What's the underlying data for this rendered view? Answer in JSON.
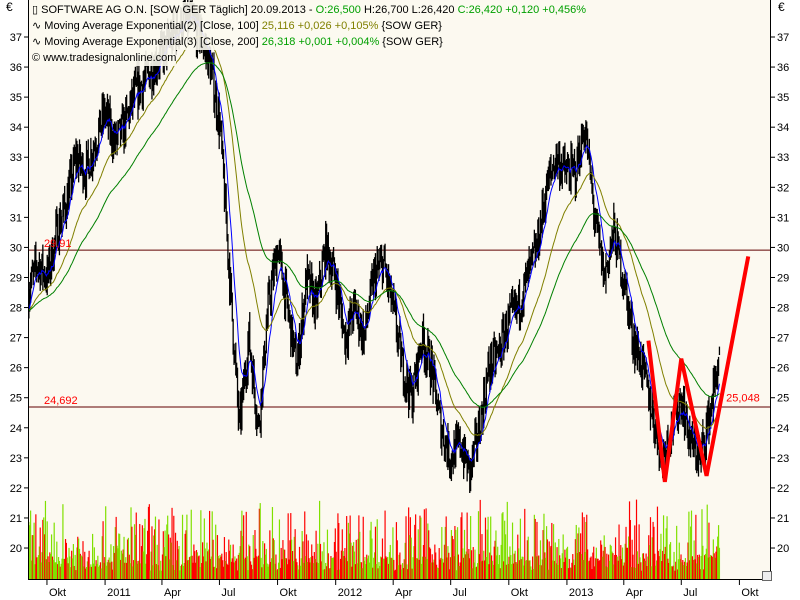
{
  "currency_symbol": "€",
  "legend": {
    "instrument": {
      "icon": "candle-icon",
      "name": "SOFTWARE AG O.N. [SOW GER  Täglich]",
      "date": "20.09.2013 -",
      "open": "O:26,500",
      "high": "H:26,700",
      "low": "L:26,420",
      "close": "C:26,420 +0,120 +0,456%"
    },
    "ma1": {
      "icon": "wave-icon",
      "label": "Moving Average Exponential(2) [Close, 100]",
      "value": "25,116 +0,026 +0,105%",
      "symbol": "{SOW GER}"
    },
    "ma2": {
      "icon": "wave-icon",
      "label": "Moving Average Exponential(3) [Close, 200]",
      "value": "26,318 +0,001 +0,004%",
      "symbol": "{SOW GER}"
    },
    "copyright": "© www.tradesignalonline.com"
  },
  "chart_data": {
    "type": "line",
    "title": "SOFTWARE AG O.N. [SOW GER  Täglich]",
    "yticks": [
      20,
      21,
      22,
      23,
      24,
      25,
      26,
      27,
      28,
      29,
      30,
      31,
      32,
      33,
      34,
      35,
      36,
      37
    ],
    "ylim": [
      19.3,
      37.6
    ],
    "xticks": [
      "Okt",
      "2011",
      "Apr",
      "Jul",
      "Okt",
      "2012",
      "Apr",
      "Jul",
      "Okt",
      "2013",
      "Apr",
      "Jul",
      "Okt"
    ],
    "xtick_months": [
      "2010-10",
      "2011-01",
      "2011-04",
      "2011-07",
      "2011-10",
      "2012-01",
      "2012-04",
      "2012-07",
      "2012-10",
      "2013-01",
      "2013-04",
      "2013-07",
      "2013-10"
    ],
    "xlim": [
      "2010-09-01",
      "2013-11-20"
    ],
    "price_closes_semimonthly": {
      "start": "2010-09-01",
      "values": [
        28.5,
        29.5,
        29,
        30.5,
        31.5,
        33,
        32.5,
        33.5,
        34.5,
        33.5,
        34,
        35,
        35.5,
        36,
        36.5,
        37,
        37.5,
        37.5,
        37,
        36,
        34,
        29,
        24,
        27,
        24,
        28,
        30,
        28,
        26,
        29,
        28,
        30,
        29,
        27,
        28,
        27,
        29,
        29.5,
        28,
        26,
        25,
        27,
        26,
        24,
        23,
        23.5,
        22.5,
        24,
        26,
        26.5,
        27.5,
        28,
        29,
        30,
        32,
        33,
        32.5,
        32.5,
        34,
        31,
        29,
        30.5,
        29,
        27,
        26,
        24.5,
        23,
        24,
        25,
        23.5,
        23,
        24.5,
        26.4
      ]
    },
    "horizontal_lines": [
      {
        "value": 29.91,
        "label": "29,91"
      },
      {
        "value": 24.692,
        "label": "24,692"
      }
    ],
    "pattern_annotation": {
      "points": [
        [
          "2013-05-10",
          26.9
        ],
        [
          "2013-06-05",
          22.2
        ],
        [
          "2013-07-01",
          26.3
        ],
        [
          "2013-08-10",
          22.4
        ],
        [
          "2013-10-15",
          29.7
        ]
      ],
      "label": "25,048",
      "label_value": 25.048
    },
    "series": [
      {
        "name": "Moving Average Exponential(2) [Close, 100]",
        "color": "#808000"
      },
      {
        "name": "Moving Average Exponential(3) [Close, 200]",
        "color": "#008000"
      }
    ],
    "colors": {
      "price": "#000000",
      "fast_line": "#0000ff",
      "hline": "#a00000",
      "pattern": "#ff0000",
      "volume_up": "#80e000",
      "volume_down": "#ff0000",
      "background": "#fcf9f0"
    }
  }
}
